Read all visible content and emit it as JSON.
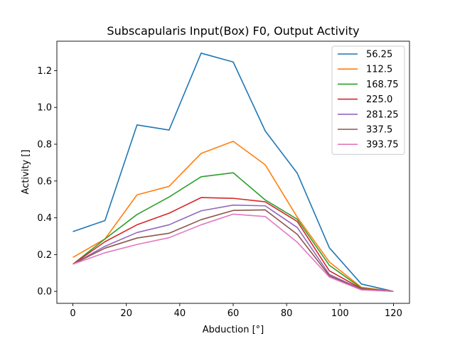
{
  "chart_data": {
    "type": "line",
    "title": "Subscapularis Input(Box) F0, Output Activity",
    "xlabel": "Abduction [°]",
    "ylabel": "Activity []",
    "xlim": [
      -6,
      126
    ],
    "ylim": [
      -0.065,
      1.36
    ],
    "xticks": [
      0,
      20,
      40,
      60,
      80,
      100,
      120
    ],
    "yticks": [
      0.0,
      0.2,
      0.4,
      0.6,
      0.8,
      1.0,
      1.2
    ],
    "legend_position": "top-right",
    "grid": false,
    "x": [
      0,
      12,
      24,
      36,
      48,
      60,
      72,
      84,
      96,
      108,
      120
    ],
    "series": [
      {
        "name": "56.25",
        "color": "#1f77b4",
        "values": [
          0.325,
          0.385,
          0.905,
          0.877,
          1.295,
          1.247,
          0.872,
          0.642,
          0.237,
          0.04,
          0.0
        ]
      },
      {
        "name": "112.5",
        "color": "#ff7f0e",
        "values": [
          0.185,
          0.285,
          0.525,
          0.571,
          0.75,
          0.816,
          0.688,
          0.403,
          0.16,
          0.022,
          0.0
        ]
      },
      {
        "name": "168.75",
        "color": "#2ca02c",
        "values": [
          0.148,
          0.285,
          0.418,
          0.513,
          0.623,
          0.645,
          0.497,
          0.392,
          0.142,
          0.018,
          0.0
        ]
      },
      {
        "name": "225.0",
        "color": "#d62728",
        "values": [
          0.148,
          0.27,
          0.362,
          0.425,
          0.51,
          0.506,
          0.487,
          0.38,
          0.112,
          0.015,
          0.0
        ]
      },
      {
        "name": "281.25",
        "color": "#9467bd",
        "values": [
          0.148,
          0.245,
          0.32,
          0.362,
          0.438,
          0.469,
          0.465,
          0.347,
          0.092,
          0.012,
          0.0
        ]
      },
      {
        "name": "337.5",
        "color": "#8c564b",
        "values": [
          0.148,
          0.235,
          0.29,
          0.316,
          0.39,
          0.44,
          0.443,
          0.31,
          0.085,
          0.01,
          0.0
        ]
      },
      {
        "name": "393.75",
        "color": "#e377c2",
        "values": [
          0.148,
          0.21,
          0.255,
          0.292,
          0.362,
          0.42,
          0.407,
          0.267,
          0.078,
          0.008,
          0.0
        ]
      }
    ]
  }
}
